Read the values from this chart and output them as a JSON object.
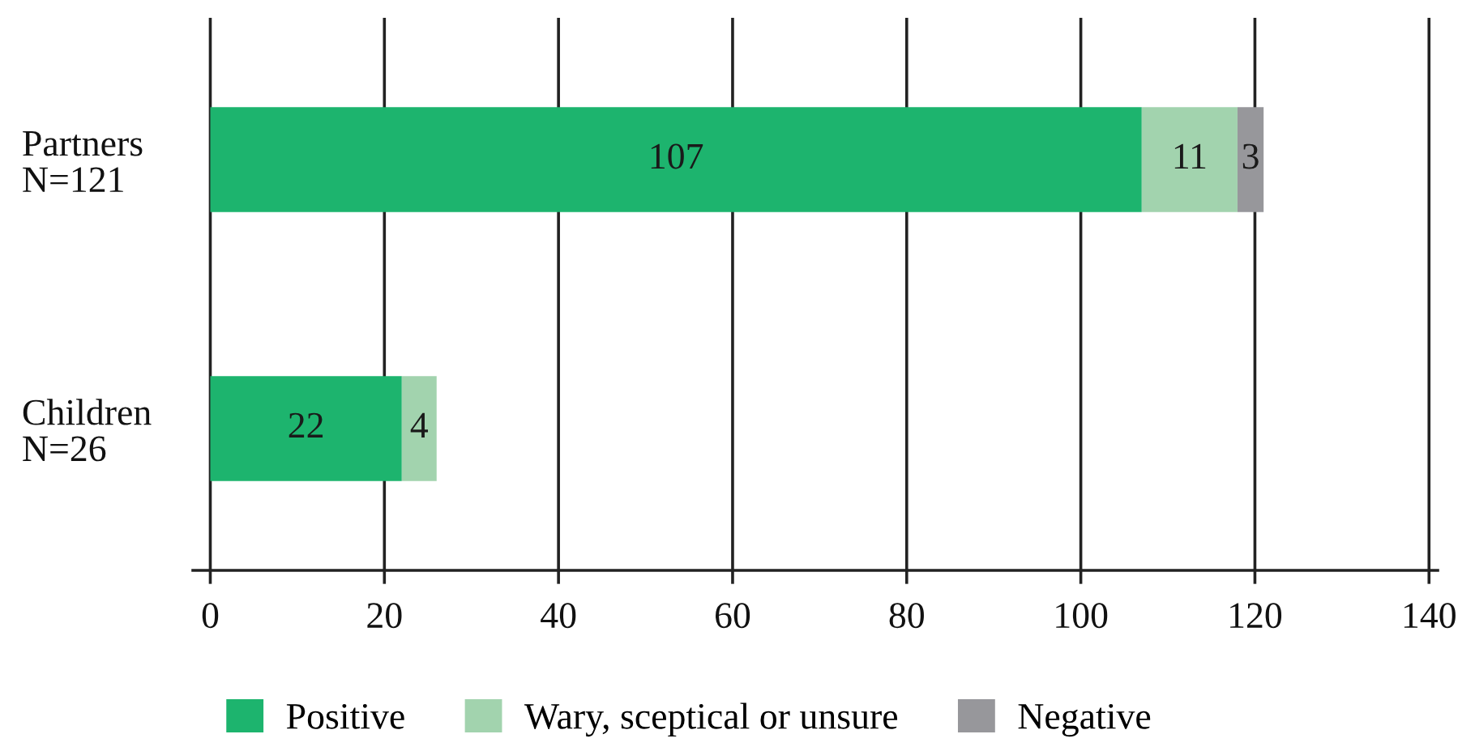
{
  "chart_data": {
    "type": "bar",
    "orientation": "horizontal",
    "stacked": true,
    "categories": [
      "Partners\nN=121",
      "Children\nN=26"
    ],
    "series": [
      {
        "name": "Positive",
        "color": "#1db46e",
        "values": [
          107,
          22
        ]
      },
      {
        "name": "Wary, sceptical or unsure",
        "color": "#a2d3ae",
        "values": [
          11,
          4
        ]
      },
      {
        "name": "Negative",
        "color": "#97979b",
        "values": [
          3,
          null
        ]
      }
    ],
    "xlim": [
      -2,
      141
    ],
    "xticks": [
      0,
      20,
      40,
      60,
      80,
      100,
      120,
      140
    ],
    "grid": "x",
    "legend": "bottom",
    "data_labels": true
  }
}
